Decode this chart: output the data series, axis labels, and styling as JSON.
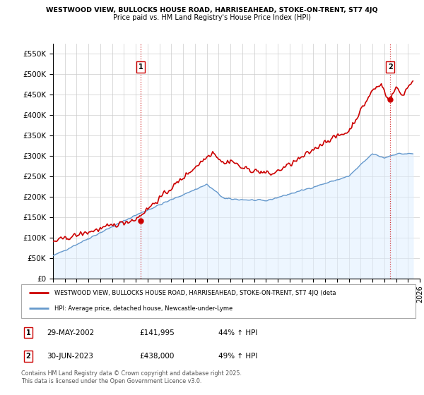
{
  "title_line1": "WESTWOOD VIEW, BULLOCKS HOUSE ROAD, HARRISEAHEAD, STOKE-ON-TRENT, ST7 4JQ",
  "title_line2": "Price paid vs. HM Land Registry's House Price Index (HPI)",
  "property_color": "#cc0000",
  "hpi_color": "#6699cc",
  "hpi_fill_color": "#ddeeff",
  "marker1_x": 2002.41,
  "marker1_y": 141995,
  "marker2_x": 2023.5,
  "marker2_y": 438000,
  "legend_property": "WESTWOOD VIEW, BULLOCKS HOUSE ROAD, HARRISEAHEAD, STOKE-ON-TRENT, ST7 4JQ (deta",
  "legend_hpi": "HPI: Average price, detached house, Newcastle-under-Lyme",
  "table_rows": [
    {
      "num": "1",
      "date": "29-MAY-2002",
      "price": "£141,995",
      "change": "44% ↑ HPI"
    },
    {
      "num": "2",
      "date": "30-JUN-2023",
      "price": "£438,000",
      "change": "49% ↑ HPI"
    }
  ],
  "footnote": "Contains HM Land Registry data © Crown copyright and database right 2025.\nThis data is licensed under the Open Government Licence v3.0.",
  "xmin": 1995,
  "xmax": 2026,
  "ylim": [
    0,
    575000
  ],
  "yticks": [
    0,
    50000,
    100000,
    150000,
    200000,
    250000,
    300000,
    350000,
    400000,
    450000,
    500000,
    550000
  ],
  "ytick_labels": [
    "£0",
    "£50K",
    "£100K",
    "£150K",
    "£200K",
    "£250K",
    "£300K",
    "£350K",
    "£400K",
    "£450K",
    "£500K",
    "£550K"
  ]
}
